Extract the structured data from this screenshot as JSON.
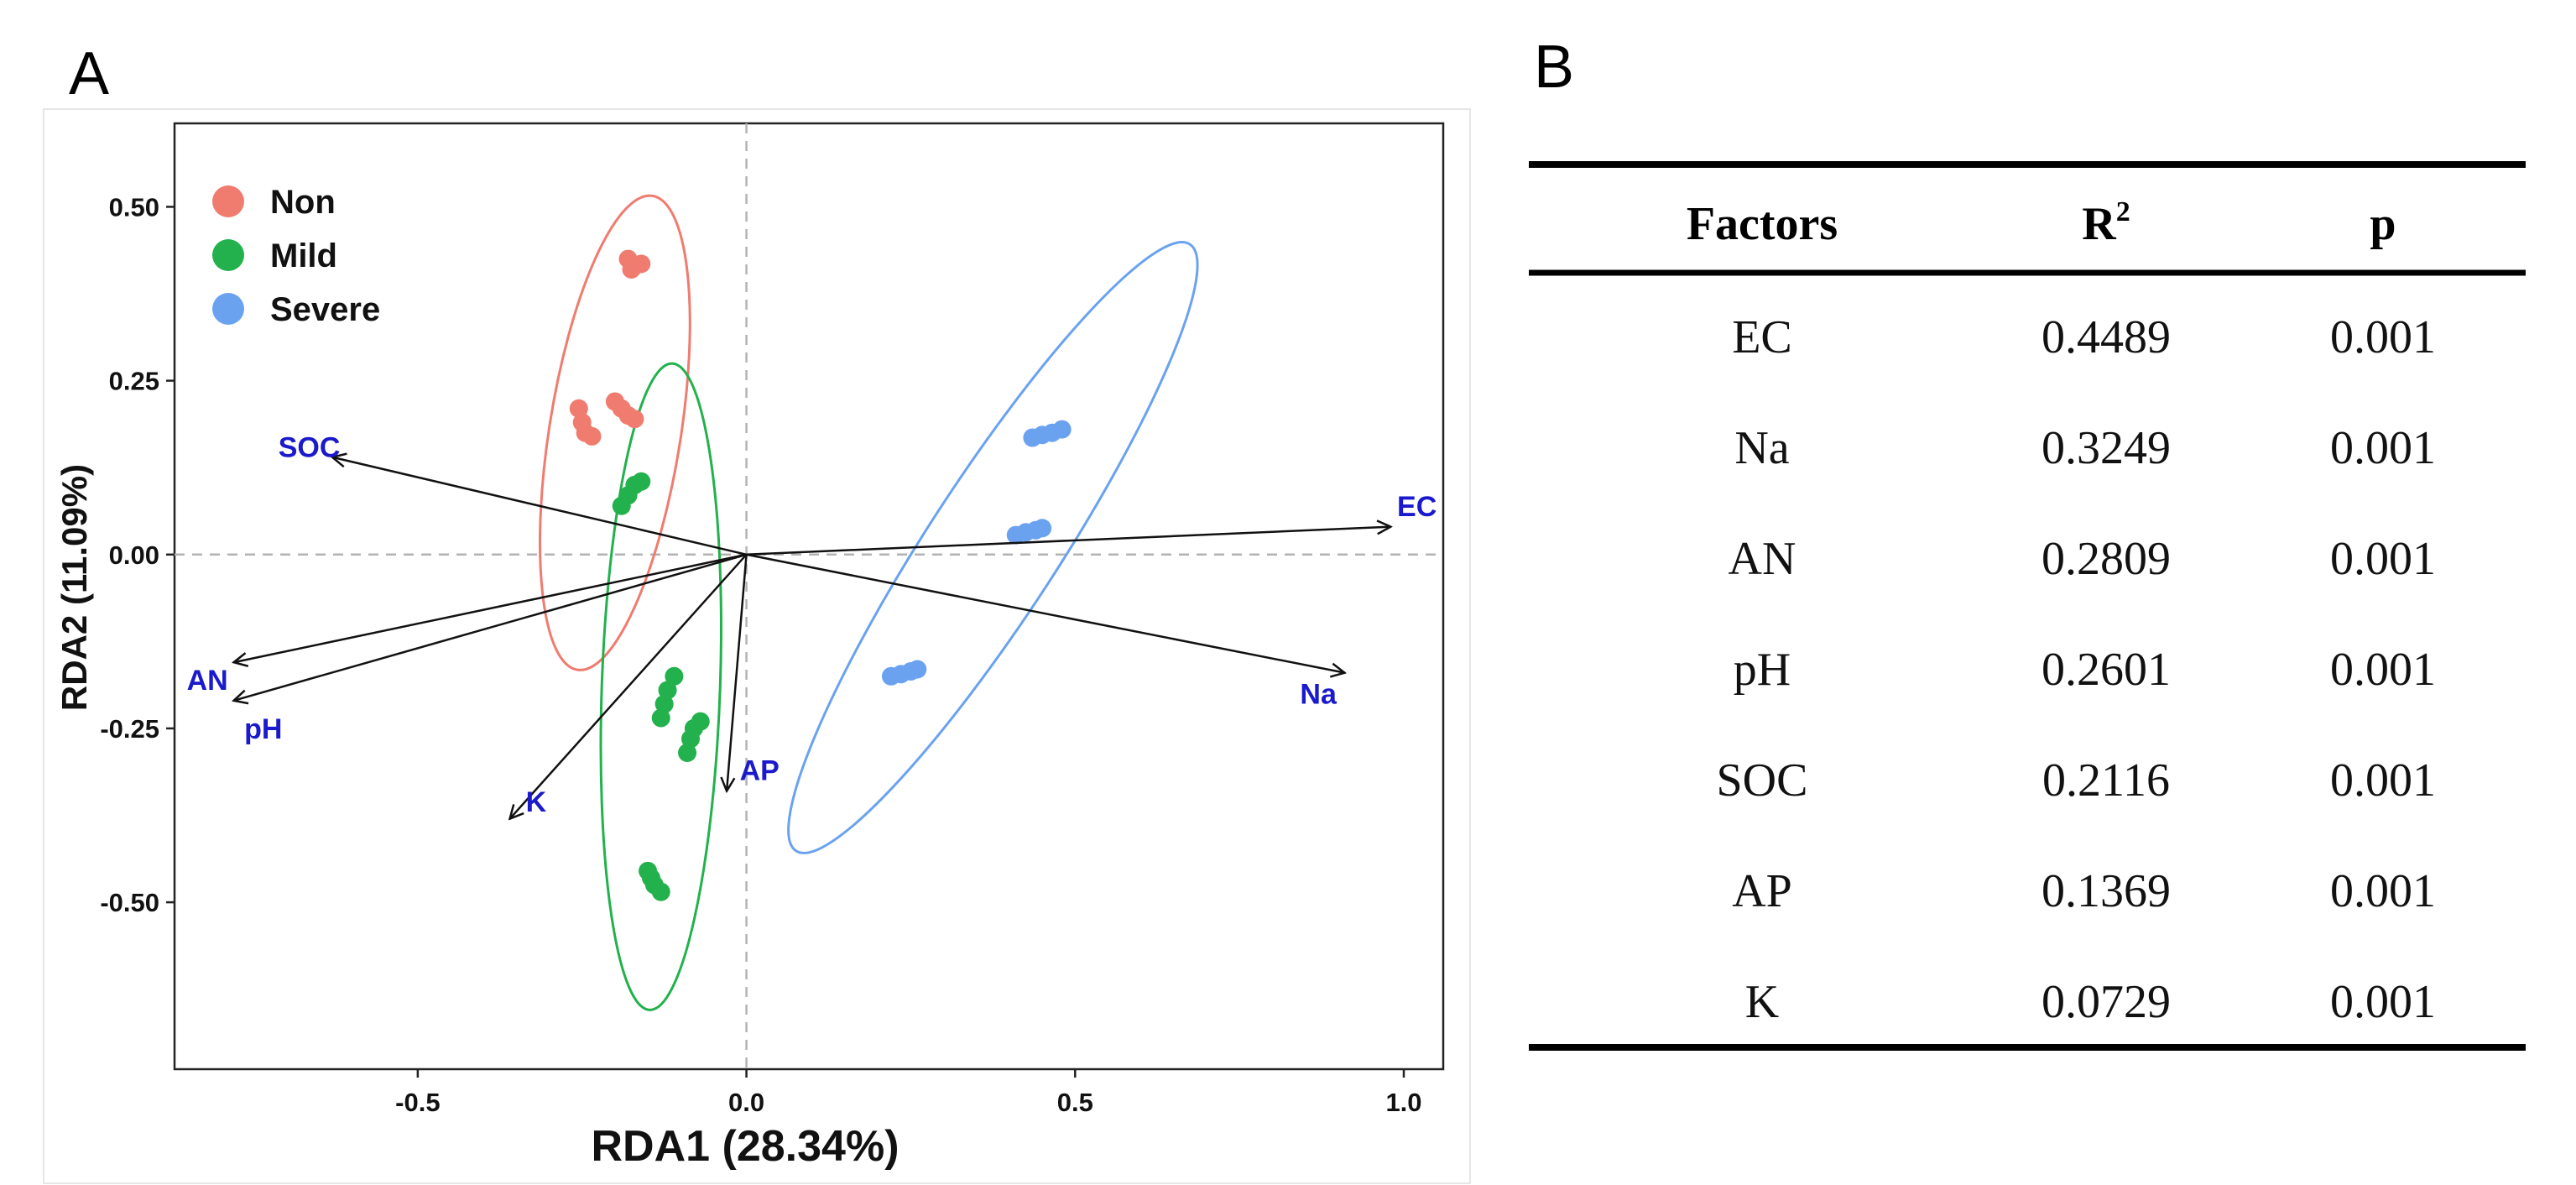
{
  "panels": {
    "a_label": "A",
    "b_label": "B"
  },
  "chart_data": {
    "type": "scatter",
    "subtype": "RDA biplot",
    "xlabel": "RDA1 (28.34%)",
    "ylabel": "RDA2 (11.09%)",
    "xlim": [
      -0.87,
      1.06
    ],
    "ylim": [
      -0.74,
      0.62
    ],
    "x_ticks": [
      -0.5,
      0.0,
      0.5,
      1.0
    ],
    "x_tick_labels": [
      "-0.5",
      "0.0",
      "0.5",
      "1.0"
    ],
    "y_ticks": [
      -0.5,
      -0.25,
      0.0,
      0.25,
      0.5
    ],
    "y_tick_labels": [
      "-0.50",
      "-0.25",
      "0.00",
      "0.25",
      "0.50"
    ],
    "reference_lines": {
      "x": 0,
      "y": 0,
      "style": "dashed"
    },
    "legend_position": "top-left",
    "series": [
      {
        "name": "Non",
        "color": "#f07b6f",
        "points": [
          [
            -0.18,
            0.425
          ],
          [
            -0.17,
            0.415
          ],
          [
            -0.16,
            0.418
          ],
          [
            -0.175,
            0.41
          ],
          [
            -0.255,
            0.21
          ],
          [
            -0.25,
            0.19
          ],
          [
            -0.245,
            0.175
          ],
          [
            -0.235,
            0.17
          ],
          [
            -0.2,
            0.22
          ],
          [
            -0.19,
            0.21
          ],
          [
            -0.18,
            0.2
          ],
          [
            -0.17,
            0.195
          ]
        ],
        "ellipse": {
          "cx": -0.2,
          "cy": 0.175,
          "rx": 0.1,
          "ry": 0.345,
          "angle_deg": 9
        }
      },
      {
        "name": "Mild",
        "color": "#22b14c",
        "points": [
          [
            -0.19,
            0.07
          ],
          [
            -0.18,
            0.085
          ],
          [
            -0.17,
            0.1
          ],
          [
            -0.16,
            0.105
          ],
          [
            -0.13,
            -0.235
          ],
          [
            -0.125,
            -0.215
          ],
          [
            -0.12,
            -0.195
          ],
          [
            -0.11,
            -0.175
          ],
          [
            -0.09,
            -0.285
          ],
          [
            -0.085,
            -0.265
          ],
          [
            -0.08,
            -0.25
          ],
          [
            -0.07,
            -0.24
          ],
          [
            -0.15,
            -0.455
          ],
          [
            -0.145,
            -0.465
          ],
          [
            -0.14,
            -0.475
          ],
          [
            -0.13,
            -0.485
          ]
        ],
        "ellipse": {
          "cx": -0.13,
          "cy": -0.19,
          "rx": 0.09,
          "ry": 0.465,
          "angle_deg": 2
        }
      },
      {
        "name": "Severe",
        "color": "#6aa2f0",
        "points": [
          [
            0.435,
            0.168
          ],
          [
            0.45,
            0.172
          ],
          [
            0.465,
            0.175
          ],
          [
            0.48,
            0.18
          ],
          [
            0.41,
            0.028
          ],
          [
            0.425,
            0.032
          ],
          [
            0.44,
            0.035
          ],
          [
            0.45,
            0.038
          ],
          [
            0.22,
            -0.175
          ],
          [
            0.235,
            -0.172
          ],
          [
            0.25,
            -0.168
          ],
          [
            0.26,
            -0.165
          ]
        ],
        "ellipse": {
          "cx": 0.375,
          "cy": 0.01,
          "rx": 0.1,
          "ry": 0.52,
          "angle_deg": 33
        }
      }
    ],
    "vectors": [
      {
        "name": "SOC",
        "x": -0.63,
        "y": 0.14,
        "label_x": -0.665,
        "label_y": 0.155
      },
      {
        "name": "EC",
        "x": 0.98,
        "y": 0.04,
        "label_x": 1.02,
        "label_y": 0.07
      },
      {
        "name": "AN",
        "x": -0.78,
        "y": -0.155,
        "label_x": -0.82,
        "label_y": -0.18
      },
      {
        "name": "pH",
        "x": -0.78,
        "y": -0.21,
        "label_x": -0.735,
        "label_y": -0.25
      },
      {
        "name": "Na",
        "x": 0.91,
        "y": -0.17,
        "label_x": 0.87,
        "label_y": -0.2
      },
      {
        "name": "K",
        "x": -0.36,
        "y": -0.38,
        "label_x": -0.32,
        "label_y": -0.355
      },
      {
        "name": "AP",
        "x": -0.03,
        "y": -0.34,
        "label_x": 0.02,
        "label_y": -0.31
      }
    ]
  },
  "table": {
    "headers": [
      "Factors",
      "R",
      "p"
    ],
    "r_superscript": "2",
    "rows": [
      [
        "EC",
        "0.4489",
        "0.001"
      ],
      [
        "Na",
        "0.3249",
        "0.001"
      ],
      [
        "AN",
        "0.2809",
        "0.001"
      ],
      [
        "pH",
        "0.2601",
        "0.001"
      ],
      [
        "SOC",
        "0.2116",
        "0.001"
      ],
      [
        "AP",
        "0.1369",
        "0.001"
      ],
      [
        "K",
        "0.0729",
        "0.001"
      ]
    ]
  }
}
